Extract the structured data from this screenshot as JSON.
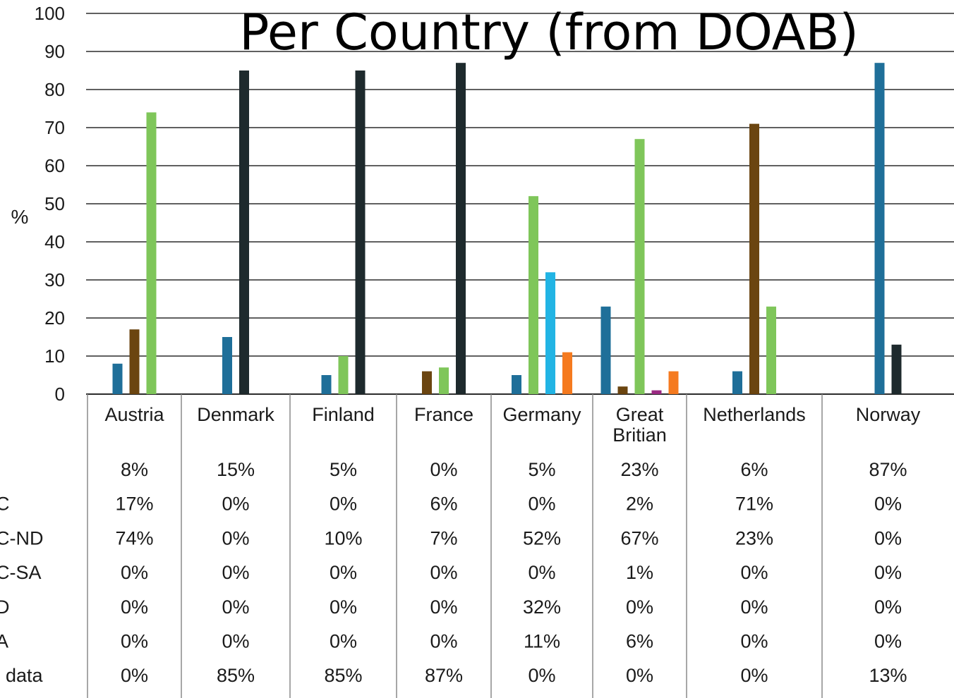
{
  "chart_data": {
    "type": "bar",
    "title": "Per Country (from DOAB)",
    "ylabel": "%",
    "ylim": [
      0,
      100
    ],
    "yticks": [
      0,
      10,
      20,
      30,
      40,
      50,
      60,
      70,
      80,
      90,
      100
    ],
    "grid": true,
    "categories": [
      [
        "Austria"
      ],
      [
        "Denmark"
      ],
      [
        "Finland"
      ],
      [
        "France"
      ],
      [
        "Germany"
      ],
      [
        "Great",
        "Britian"
      ],
      [
        "Netherlands"
      ],
      [
        "Norway"
      ]
    ],
    "series": [
      {
        "name": "",
        "color": "#1f6f99",
        "values": [
          8,
          15,
          5,
          0,
          5,
          23,
          6,
          87
        ]
      },
      {
        "name": "C",
        "color": "#6b4510",
        "values": [
          17,
          0,
          0,
          6,
          0,
          2,
          71,
          0
        ]
      },
      {
        "name": "C-ND",
        "color": "#7fc65a",
        "values": [
          74,
          0,
          10,
          7,
          52,
          67,
          23,
          0
        ]
      },
      {
        "name": "C-SA",
        "color": "#9b2a83",
        "values": [
          0,
          0,
          0,
          0,
          0,
          1,
          0,
          0
        ]
      },
      {
        "name": "D",
        "color": "#22b4e4",
        "values": [
          0,
          0,
          0,
          0,
          32,
          0,
          0,
          0
        ]
      },
      {
        "name": "A",
        "color": "#f57a1f",
        "values": [
          0,
          0,
          0,
          0,
          11,
          6,
          0,
          0
        ]
      },
      {
        "name": "data",
        "color": "#1e2a2d",
        "values": [
          0,
          85,
          85,
          87,
          0,
          0,
          0,
          13
        ]
      }
    ],
    "table": [
      [
        "8%",
        "15%",
        "5%",
        "0%",
        "5%",
        "23%",
        "6%",
        "87%"
      ],
      [
        "17%",
        "0%",
        "0%",
        "6%",
        "0%",
        "2%",
        "71%",
        "0%"
      ],
      [
        "74%",
        "0%",
        "10%",
        "7%",
        "52%",
        "67%",
        "23%",
        "0%"
      ],
      [
        "0%",
        "0%",
        "0%",
        "0%",
        "0%",
        "1%",
        "0%",
        "0%"
      ],
      [
        "0%",
        "0%",
        "0%",
        "0%",
        "32%",
        "0%",
        "0%",
        "0%"
      ],
      [
        "0%",
        "0%",
        "0%",
        "0%",
        "11%",
        "6%",
        "0%",
        "0%"
      ],
      [
        "0%",
        "85%",
        "85%",
        "87%",
        "0%",
        "0%",
        "0%",
        "13%"
      ]
    ]
  }
}
